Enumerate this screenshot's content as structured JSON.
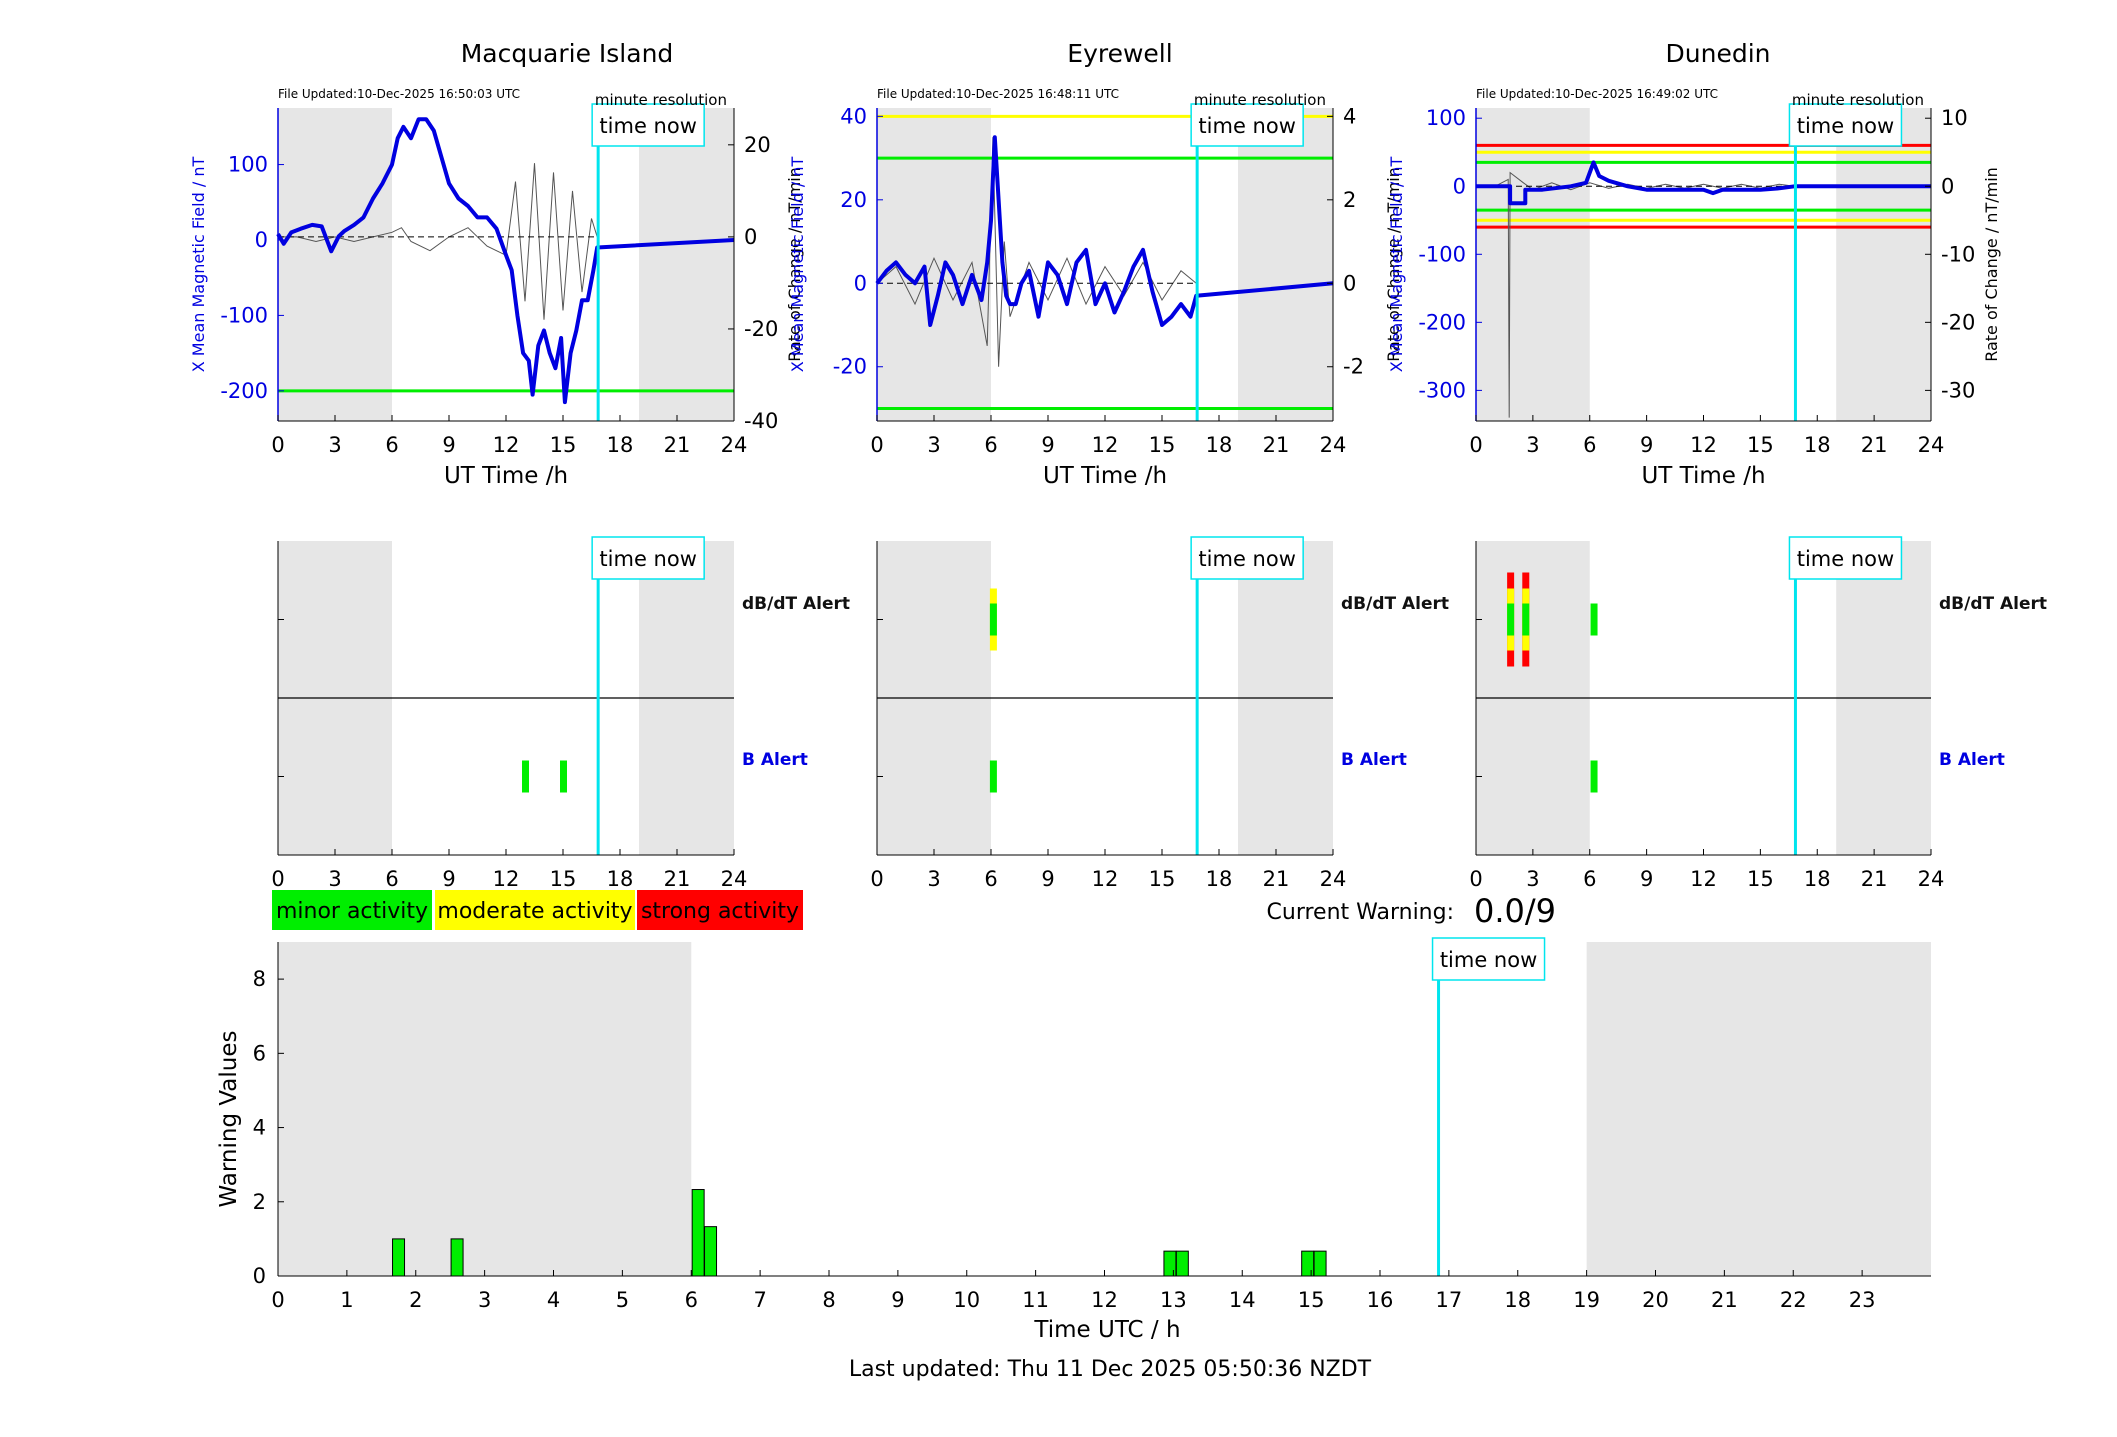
{
  "colors": {
    "field_line": "#0000e0",
    "rate_line": "#555555",
    "night": "#e6e6e6",
    "now": "#00e5ee",
    "minor": "#00ee00",
    "moderate": "#ffff00",
    "strong": "#ff0000"
  },
  "legend": {
    "minor": "minor activity",
    "moderate": "moderate activity",
    "strong": "strong activity"
  },
  "current_warning": {
    "label": "Current Warning:",
    "value": "0.0/9"
  },
  "footer": "Last updated: Thu 11 Dec 2025 05:50:36 NZDT",
  "chart_data": [
    {
      "type": "line",
      "title": "Macquarie Island",
      "file_updated": "File Updated:10-Dec-2025 16:50:03 UTC",
      "resolution": "minute resolution",
      "now_label": "time now",
      "now_hour": 16.85,
      "night": [
        [
          0,
          6
        ],
        [
          19,
          24
        ]
      ],
      "xlabel": "UT Time /h",
      "ylabel": "X Mean Magnetic Field / nT",
      "y2label": "Rate of Change / nT/min",
      "xticks": [
        0,
        3,
        6,
        9,
        12,
        15,
        18,
        21,
        24
      ],
      "ylim": [
        -240,
        175
      ],
      "yticks": [
        100,
        0,
        -100,
        -200
      ],
      "y2lim": [
        -40,
        28
      ],
      "y2ticks": [
        20,
        0,
        -20,
        -40
      ],
      "thresholds": [
        {
          "value": -200,
          "color": "#00ee00"
        }
      ],
      "series": [
        {
          "axis": "left",
          "x": [
            0,
            0.3,
            0.7,
            1.2,
            1.8,
            2.3,
            2.8,
            3.2,
            3.5,
            4,
            4.5,
            5,
            5.5,
            6,
            6.3,
            6.6,
            7,
            7.4,
            7.8,
            8.2,
            8.6,
            9,
            9.5,
            10,
            10.5,
            11,
            11.5,
            12,
            12.3,
            12.6,
            12.9,
            13.2,
            13.4,
            13.7,
            14,
            14.3,
            14.6,
            14.9,
            15.1,
            15.4,
            15.7,
            16,
            16.3,
            16.6,
            16.8,
            24
          ],
          "y": [
            8,
            -5,
            10,
            15,
            20,
            18,
            -15,
            5,
            12,
            20,
            30,
            55,
            75,
            100,
            135,
            150,
            135,
            160,
            160,
            145,
            110,
            75,
            55,
            45,
            30,
            30,
            15,
            -20,
            -40,
            -100,
            -150,
            -160,
            -205,
            -140,
            -120,
            -150,
            -170,
            -130,
            -215,
            -150,
            -120,
            -80,
            -80,
            -40,
            -10,
            0
          ]
        },
        {
          "axis": "right",
          "x": [
            0,
            1,
            2,
            3,
            4,
            5,
            6,
            6.5,
            7,
            8,
            9,
            10,
            11,
            12,
            12.5,
            13,
            13.5,
            14,
            14.5,
            15,
            15.5,
            16,
            16.5,
            16.8
          ],
          "y": [
            0,
            0,
            -1,
            0,
            -1,
            0,
            1,
            2,
            -1,
            -3,
            0,
            2,
            -2,
            -4,
            12,
            -14,
            16,
            -18,
            14,
            -16,
            10,
            -12,
            4,
            0
          ]
        }
      ]
    },
    {
      "type": "line",
      "title": "Eyrewell",
      "file_updated": "File Updated:10-Dec-2025 16:48:11 UTC",
      "resolution": "minute resolution",
      "now_label": "time now",
      "now_hour": 16.85,
      "night": [
        [
          0,
          6
        ],
        [
          19,
          24
        ]
      ],
      "xlabel": "UT Time /h",
      "ylabel": "X Mean Magnetic Field / nT",
      "y2label": "Rate of Change / nT/min",
      "xticks": [
        0,
        3,
        6,
        9,
        12,
        15,
        18,
        21,
        24
      ],
      "ylim": [
        -33,
        42
      ],
      "yticks": [
        40,
        20,
        0,
        -20
      ],
      "y2lim": [
        -3.3,
        4.2
      ],
      "y2ticks": [
        4,
        2,
        0,
        -2
      ],
      "thresholds": [
        {
          "value": 40,
          "color": "#ffff00"
        },
        {
          "value": 30,
          "color": "#00ee00"
        },
        {
          "value": -30,
          "color": "#00ee00"
        }
      ],
      "series": [
        {
          "axis": "left",
          "x": [
            0,
            0.5,
            1,
            1.5,
            2,
            2.5,
            2.8,
            3.2,
            3.6,
            4,
            4.5,
            5,
            5.5,
            5.8,
            6,
            6.2,
            6.4,
            6.6,
            6.8,
            7,
            7.3,
            7.6,
            8,
            8.5,
            9,
            9.5,
            10,
            10.5,
            11,
            11.5,
            12,
            12.5,
            13,
            13.5,
            14,
            14.5,
            15,
            15.5,
            16,
            16.5,
            16.8,
            24
          ],
          "y": [
            0,
            3,
            5,
            2,
            0,
            4,
            -10,
            -3,
            5,
            2,
            -5,
            2,
            -4,
            5,
            15,
            35,
            20,
            5,
            -3,
            -5,
            -5,
            0,
            3,
            -8,
            5,
            2,
            -5,
            5,
            8,
            -5,
            0,
            -7,
            -2,
            4,
            8,
            -2,
            -10,
            -8,
            -5,
            -8,
            -3,
            0
          ]
        },
        {
          "axis": "right",
          "x": [
            0,
            1,
            2,
            3,
            4,
            5,
            5.8,
            6.1,
            6.4,
            6.7,
            7,
            8,
            9,
            10,
            11,
            12,
            13,
            14,
            15,
            16,
            16.8
          ],
          "y": [
            0,
            0.4,
            -0.5,
            0.6,
            -0.4,
            0.5,
            -1.5,
            3.5,
            -2.0,
            1.0,
            -0.8,
            0.5,
            -0.4,
            0.6,
            -0.5,
            0.4,
            -0.3,
            0.5,
            -0.4,
            0.3,
            0
          ]
        }
      ]
    },
    {
      "type": "line",
      "title": "Dunedin",
      "file_updated": "File Updated:10-Dec-2025 16:49:02 UTC",
      "resolution": "minute resolution",
      "now_label": "time now",
      "now_hour": 16.85,
      "night": [
        [
          0,
          6
        ],
        [
          19,
          24
        ]
      ],
      "xlabel": "UT Time /h",
      "ylabel": "X Mean Magnetic Field / nT",
      "y2label": "Rate of Change / nT/min",
      "xticks": [
        0,
        3,
        6,
        9,
        12,
        15,
        18,
        21,
        24
      ],
      "ylim": [
        -345,
        115
      ],
      "yticks": [
        100,
        0,
        -100,
        -200,
        -300
      ],
      "y2lim": [
        -34.5,
        11.5
      ],
      "y2ticks": [
        10,
        0,
        -10,
        -20,
        -30
      ],
      "thresholds": [
        {
          "value": 60,
          "color": "#ff0000"
        },
        {
          "value": 50,
          "color": "#ffff00"
        },
        {
          "value": 35,
          "color": "#00ee00"
        },
        {
          "value": -35,
          "color": "#00ee00"
        },
        {
          "value": -50,
          "color": "#ffff00"
        },
        {
          "value": -60,
          "color": "#ff0000"
        }
      ],
      "series": [
        {
          "axis": "left",
          "x": [
            0,
            1.5,
            1.8,
            1.8,
            2.6,
            2.6,
            3.5,
            5,
            5.8,
            6.2,
            6.5,
            7,
            8,
            9,
            10,
            11,
            12,
            12.5,
            13,
            14,
            15,
            16,
            16.8,
            24
          ],
          "y": [
            0,
            0,
            0,
            -25,
            -25,
            -5,
            -5,
            0,
            5,
            35,
            15,
            8,
            0,
            -5,
            -5,
            -5,
            -5,
            -10,
            -5,
            -5,
            -5,
            -3,
            0,
            0
          ]
        },
        {
          "axis": "right",
          "x": [
            0,
            1,
            1.7,
            1.75,
            1.8,
            2.5,
            3,
            4,
            5,
            6,
            7,
            8,
            9,
            10,
            11,
            12,
            13,
            14,
            15,
            16,
            16.8
          ],
          "y": [
            0,
            0,
            1,
            -34,
            2,
            0.5,
            -0.5,
            0.5,
            -0.5,
            0.5,
            -0.3,
            0.3,
            -0.3,
            0.3,
            -0.3,
            0.3,
            -0.3,
            0.3,
            -0.3,
            0.3,
            0
          ]
        }
      ]
    },
    {
      "type": "alerts",
      "title": "Macquarie Island",
      "now_label": "time now",
      "now_hour": 16.85,
      "night": [
        [
          0,
          6
        ],
        [
          19,
          24
        ]
      ],
      "xticks": [
        0,
        3,
        6,
        9,
        12,
        15,
        18,
        21,
        24
      ],
      "labels": {
        "dbdt": "dB/dT Alert",
        "b": "B Alert"
      },
      "dbdt_alerts": [],
      "b_alerts": [
        {
          "hour": 13,
          "level": "minor"
        },
        {
          "hour": 15,
          "level": "minor"
        }
      ]
    },
    {
      "type": "alerts",
      "title": "Eyrewell",
      "now_label": "time now",
      "now_hour": 16.85,
      "night": [
        [
          0,
          6
        ],
        [
          19,
          24
        ]
      ],
      "xticks": [
        0,
        3,
        6,
        9,
        12,
        15,
        18,
        21,
        24
      ],
      "labels": {
        "dbdt": "dB/dT Alert",
        "b": "B Alert"
      },
      "dbdt_alerts": [
        {
          "hour": 6.1,
          "level": "moderate"
        }
      ],
      "b_alerts": [
        {
          "hour": 6.1,
          "level": "minor"
        }
      ]
    },
    {
      "type": "alerts",
      "title": "Dunedin",
      "now_label": "time now",
      "now_hour": 16.85,
      "night": [
        [
          0,
          6
        ],
        [
          19,
          24
        ]
      ],
      "xticks": [
        0,
        3,
        6,
        9,
        12,
        15,
        18,
        21,
        24
      ],
      "labels": {
        "dbdt": "dB/dT Alert",
        "b": "B Alert"
      },
      "dbdt_alerts": [
        {
          "hour": 1.8,
          "level": "strong"
        },
        {
          "hour": 2.6,
          "level": "strong"
        },
        {
          "hour": 6.2,
          "level": "minor"
        }
      ],
      "b_alerts": [
        {
          "hour": 6.2,
          "level": "minor"
        }
      ]
    },
    {
      "type": "bar",
      "now_label": "time now",
      "now_hour": 16.85,
      "night": [
        [
          0,
          6
        ],
        [
          19,
          24
        ]
      ],
      "xlabel": "Time UTC / h",
      "ylabel": "Warning Values",
      "xlim": [
        0,
        24
      ],
      "ylim": [
        0,
        9
      ],
      "yticks": [
        0,
        2,
        4,
        6,
        8
      ],
      "xticks": [
        0,
        1,
        2,
        3,
        4,
        5,
        6,
        7,
        8,
        9,
        10,
        11,
        12,
        13,
        14,
        15,
        16,
        17,
        18,
        19,
        20,
        21,
        22,
        23
      ],
      "bars": [
        {
          "hour": 1.75,
          "value": 1.0
        },
        {
          "hour": 2.6,
          "value": 1.0
        },
        {
          "hour": 6.1,
          "value": 2.33
        },
        {
          "hour": 6.28,
          "value": 1.33
        },
        {
          "hour": 12.95,
          "value": 0.67
        },
        {
          "hour": 13.13,
          "value": 0.67
        },
        {
          "hour": 14.95,
          "value": 0.67
        },
        {
          "hour": 15.13,
          "value": 0.67
        }
      ]
    }
  ]
}
